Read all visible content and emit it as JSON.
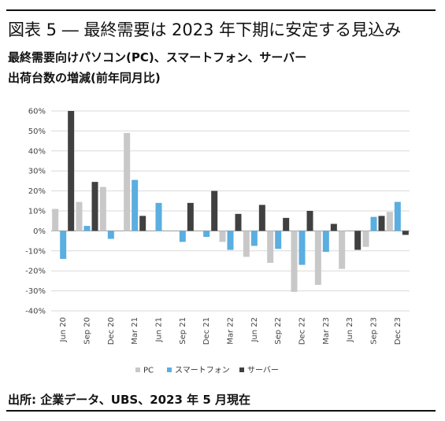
{
  "title": "図表 5 ― 最終需要は 2023 年下期に安定する見込み",
  "subtitle_line1": "最終需要向けパソコン(PC)、スマートフォン、サーバー",
  "subtitle_line2": "出荷台数の増減(前年同月比)",
  "source": "出所: 企業データ、UBS、2023 年 5 月現在",
  "colors": {
    "pc": "#c8c8c8",
    "smartphone": "#5aaee0",
    "server": "#404040",
    "grid": "#d9d9d9"
  },
  "chart_data": {
    "type": "bar",
    "categories": [
      "Jun 20",
      "Sep 20",
      "Dec 20",
      "Mar 21",
      "Jun 21",
      "Sep 21",
      "Dec 21",
      "Mar 22",
      "Jun 22",
      "Sep 22",
      "Dec 22",
      "Mar 23",
      "Jun 23",
      "Sep 23",
      "Dec 23"
    ],
    "ylim": [
      -40,
      60
    ],
    "yticks": [
      -40,
      -30,
      -20,
      -10,
      0,
      10,
      20,
      30,
      40,
      50,
      60
    ],
    "ytick_labels": [
      "-40%",
      "-30%",
      "-20%",
      "-10%",
      "0%",
      "10%",
      "20%",
      "30%",
      "40%",
      "50%",
      "60%"
    ],
    "legend_position": "bottom",
    "grid": true,
    "series": [
      {
        "name": "PC",
        "key": "pc",
        "values": [
          11,
          14.5,
          22,
          49,
          null,
          null,
          null,
          -5.5,
          -13,
          -16,
          -30.5,
          -27,
          -19,
          -8,
          9.5
        ]
      },
      {
        "name": "スマートフォン",
        "key": "smartphone",
        "values": [
          -14,
          2.5,
          -4,
          25.5,
          14,
          -5.5,
          -3,
          -9.5,
          -7.5,
          -9,
          -17,
          -10.5,
          null,
          7,
          14.5
        ]
      },
      {
        "name": "サーバー",
        "key": "server",
        "values": [
          60,
          24.5,
          null,
          7.5,
          null,
          14,
          20,
          8.5,
          13,
          6.5,
          10,
          3.5,
          -9.5,
          7.5,
          -2
        ]
      }
    ]
  }
}
